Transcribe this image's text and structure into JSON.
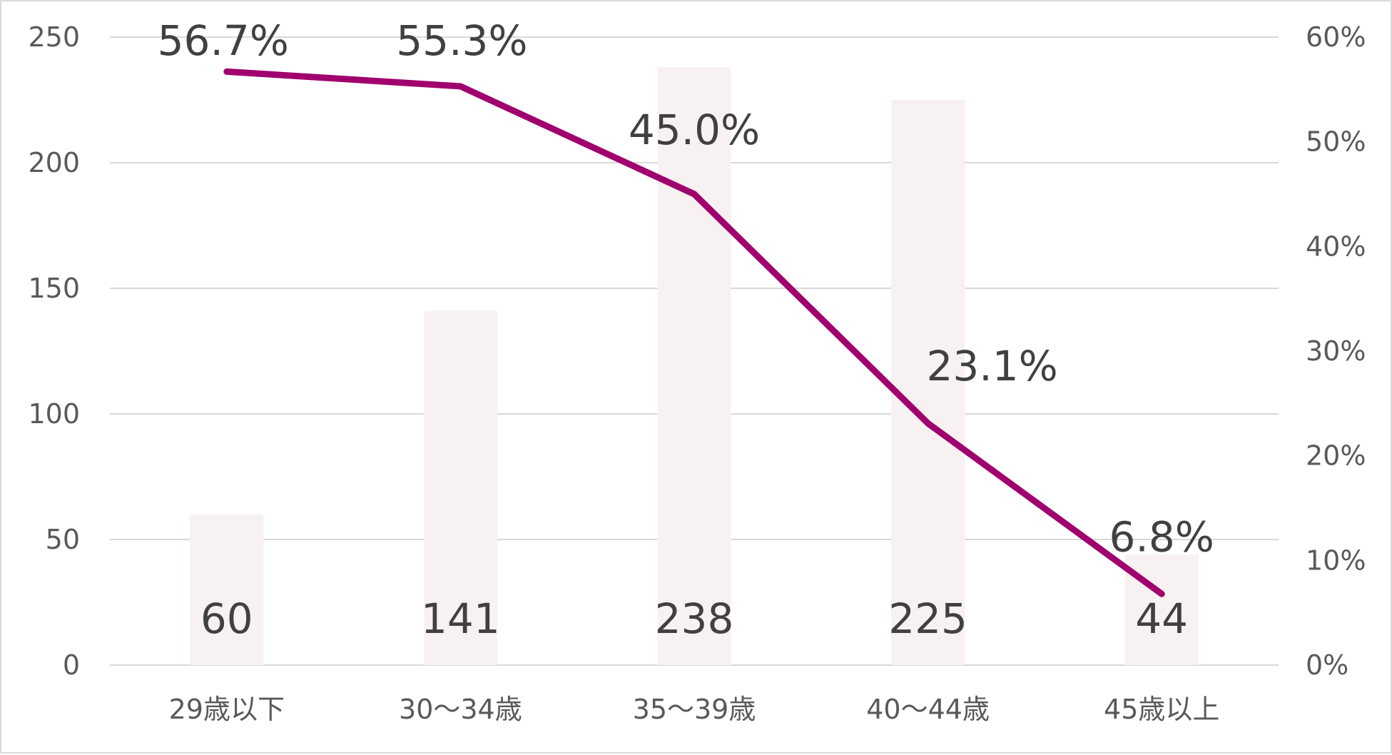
{
  "chart_data": {
    "type": "bar",
    "categories": [
      "29歳以下",
      "30～34歳",
      "35～39歳",
      "40～44歳",
      "45歳以上"
    ],
    "series": [
      {
        "type": "bar",
        "values": [
          60,
          141,
          238,
          225,
          44
        ],
        "axis": "left",
        "color": "#f8f1f1"
      },
      {
        "type": "line",
        "values": [
          56.7,
          55.3,
          45.0,
          23.1,
          6.8
        ],
        "value_labels": [
          "56.7%",
          "55.3%",
          "45.0%",
          "23.1%",
          "6.8%"
        ],
        "axis": "right",
        "color": "#a0006e"
      }
    ],
    "y_left": {
      "range": [
        0,
        250
      ],
      "ticks": [
        0,
        50,
        100,
        150,
        200,
        250
      ]
    },
    "y_right": {
      "range": [
        0,
        60
      ],
      "ticks": [
        0,
        10,
        20,
        30,
        40,
        50,
        60
      ],
      "tick_labels": [
        "0%",
        "10%",
        "20%",
        "30%",
        "40%",
        "50%",
        "60%"
      ]
    },
    "grid": true,
    "gridline_color": "#d9d9d9",
    "title": "",
    "legend": "none"
  }
}
